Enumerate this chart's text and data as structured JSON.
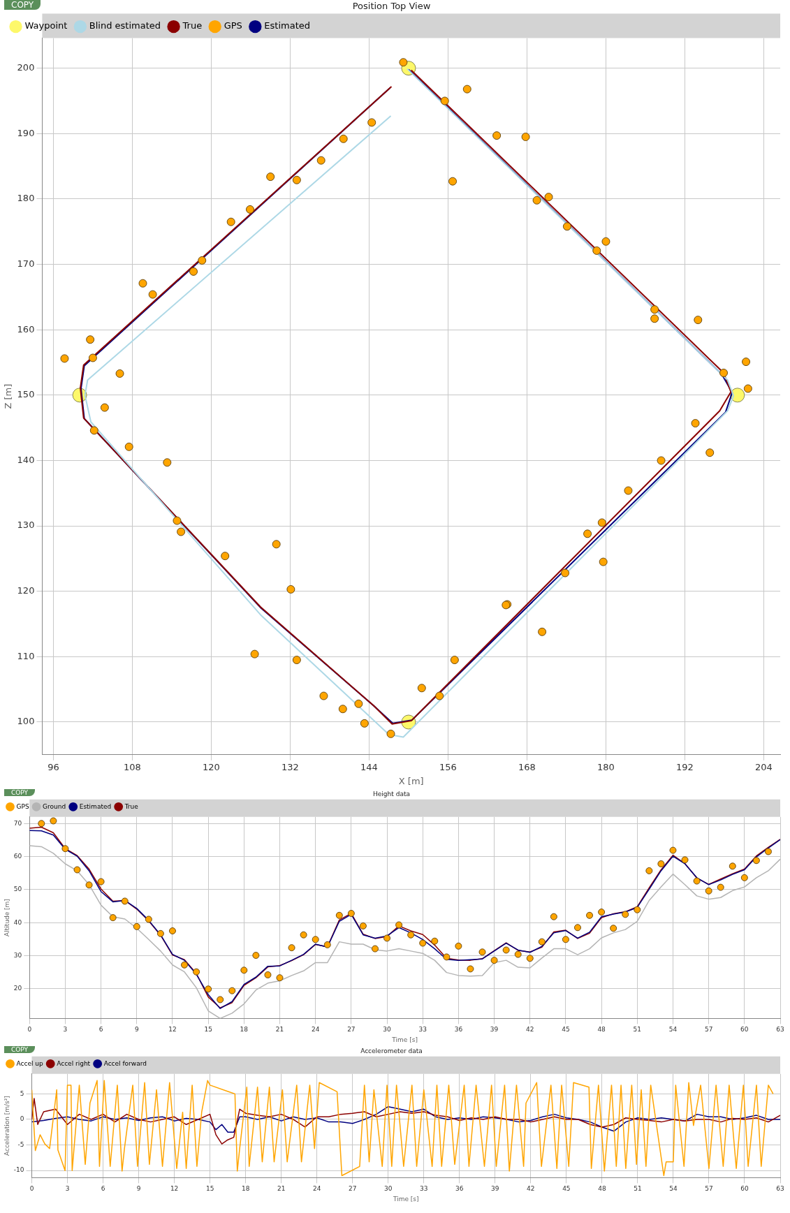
{
  "chart_data": [
    {
      "type": "line",
      "title": "Position Top View",
      "xlabel": "X [m]",
      "ylabel": "Z [m]",
      "annotations": [
        "COPY"
      ],
      "grid": true,
      "legend": "top left",
      "xlim": [
        94.3,
        206.5
      ],
      "ylim": [
        95,
        204.6
      ],
      "xticks": [
        96,
        108,
        120,
        132,
        144,
        156,
        168,
        180,
        192,
        204
      ],
      "yticks": [
        100,
        110,
        120,
        130,
        140,
        150,
        160,
        170,
        180,
        190,
        200
      ],
      "series": [
        {
          "name": "Waypoint",
          "type": "scatter",
          "marker": "circle",
          "color": "#fdf86a",
          "x": [
            150,
            100,
            150,
            200
          ],
          "values": [
            200,
            150,
            100,
            150
          ]
        },
        {
          "name": "Blind estimated",
          "type": "line",
          "marker": "none",
          "color": "#add8e6",
          "x": [
            147.3,
            101.2,
            100.8,
            101.7,
            127.5,
            147,
            149.2,
            198.5,
            199.4,
            198.5,
            149.8
          ],
          "values": [
            192.7,
            152.3,
            150,
            145.9,
            116.4,
            98.1,
            97.7,
            147.6,
            149.9,
            152.3,
            199.9
          ]
        },
        {
          "name": "True",
          "type": "line",
          "marker": "none",
          "color": "#8b0000",
          "x": [
            147.4,
            100.6,
            100.1,
            100.6,
            127.5,
            144.7,
            147.5,
            150.4,
            197.3,
            199,
            197.9,
            150.4
          ],
          "values": [
            197.2,
            154.6,
            151.1,
            146.5,
            117.6,
            102.5,
            99.7,
            100.2,
            147.6,
            150.5,
            153.4,
            199.7
          ]
        },
        {
          "name": "GPS",
          "type": "scatter",
          "marker": "circle",
          "color": "#ffa500",
          "x": [
            149.2,
            155.5,
            158.9,
            156.7,
            163.4,
            167.8,
            169.5,
            171.3,
            174.1,
            178.6,
            180,
            187.4,
            187.4,
            194,
            197.9,
            201.3,
            201.6,
            193.6,
            195.8,
            188.4,
            183.4,
            179.4,
            177.2,
            179.6,
            173.8,
            165,
            164.8,
            170.3,
            157,
            154.7,
            152,
            147.3,
            143.3,
            142.4,
            140,
            137.1,
            133,
            132.1,
            129.9,
            126.6,
            122.1,
            115.4,
            114.8,
            113.3,
            107.5,
            103.8,
            102.2,
            106.1,
            102,
            101.6,
            97.7,
            111.1,
            109.6,
            117.3,
            118.6,
            123,
            125.9,
            129,
            133,
            136.7,
            140.1,
            144.4
          ],
          "values": [
            200.9,
            195,
            196.8,
            182.7,
            189.7,
            189.5,
            179.8,
            180.3,
            175.8,
            172.1,
            173.5,
            163.1,
            161.7,
            161.5,
            153.4,
            155.1,
            151,
            145.7,
            141.2,
            140,
            135.4,
            130.5,
            128.8,
            124.5,
            122.8,
            118,
            117.9,
            113.8,
            109.5,
            104,
            105.2,
            98.2,
            99.8,
            102.8,
            102,
            104,
            109.5,
            120.3,
            127.2,
            110.4,
            125.4,
            129.1,
            130.8,
            139.7,
            142.1,
            148.1,
            144.6,
            153.3,
            155.7,
            158.5,
            155.6,
            165.4,
            167.1,
            168.9,
            170.6,
            176.5,
            178.4,
            183.4,
            182.9,
            185.9,
            189.2,
            191.7
          ]
        },
        {
          "name": "Estimated",
          "type": "line",
          "marker": "none",
          "color": "#000080",
          "x": [
            150,
            197.6,
            199.2,
            198.2,
            150.5,
            147.6,
            144.8,
            127.6,
            100.7,
            100.2,
            100.7,
            147.2
          ],
          "values": [
            199.8,
            153.2,
            150.4,
            147.4,
            100.3,
            99.8,
            102.4,
            117.4,
            146.4,
            151,
            154.5,
            197
          ]
        }
      ]
    },
    {
      "type": "line",
      "title": "Height data",
      "xlabel": "Time [s]",
      "ylabel": "Altitude [m]",
      "annotations": [
        "COPY"
      ],
      "grid": true,
      "legend": "top left",
      "xlim": [
        0,
        63
      ],
      "ylim": [
        11,
        72
      ],
      "xticks": [
        0,
        3,
        6,
        9,
        12,
        15,
        18,
        21,
        24,
        27,
        30,
        33,
        36,
        39,
        42,
        45,
        48,
        51,
        54,
        57,
        60,
        63
      ],
      "yticks": [
        20,
        30,
        40,
        50,
        60,
        70
      ],
      "x": [
        0,
        1,
        2,
        3,
        4,
        5,
        6,
        7,
        8,
        9,
        10,
        11,
        12,
        13,
        14,
        15,
        16,
        17,
        18,
        19,
        20,
        21,
        22,
        23,
        24,
        25,
        26,
        27,
        28,
        29,
        30,
        31,
        32,
        33,
        34,
        35,
        36,
        37,
        38,
        39,
        40,
        41,
        42,
        43,
        44,
        45,
        46,
        47,
        48,
        49,
        50,
        51,
        52,
        53,
        54,
        55,
        56,
        57,
        58,
        59,
        60,
        61,
        62,
        63
      ],
      "series": [
        {
          "name": "GPS",
          "type": "scatter",
          "marker": "circle",
          "color": "#ffa500",
          "x": [
            1,
            2,
            3,
            4,
            5,
            6,
            7,
            8,
            9,
            10,
            11,
            12,
            13,
            14,
            15,
            16,
            17,
            18,
            19,
            20,
            21,
            22,
            23,
            24,
            25,
            26,
            27,
            28,
            29,
            30,
            31,
            32,
            33,
            34,
            35,
            36,
            37,
            38,
            39,
            40,
            41,
            42,
            43,
            44,
            45,
            46,
            47,
            48,
            49,
            50,
            51,
            52,
            53,
            54,
            55,
            56,
            57,
            58,
            59,
            60,
            61,
            62
          ],
          "values": [
            70,
            70.8,
            62.4,
            56,
            51.4,
            52.4,
            41.5,
            46.5,
            38.8,
            41,
            36.7,
            37.5,
            27.2,
            25.1,
            19.9,
            16.7,
            19.4,
            25.6,
            30.1,
            24.2,
            23.3,
            32.4,
            36.3,
            34.9,
            33.3,
            42.2,
            42.8,
            39,
            32.1,
            35.3,
            39.3,
            36.3,
            33.8,
            34.4,
            29.6,
            32.9,
            26,
            31.1,
            28.6,
            31.7,
            30.4,
            29.2,
            34.2,
            41.8,
            34.9,
            38.5,
            42.2,
            43.2,
            38.3,
            42.5,
            43.9,
            55.7,
            57.8,
            61.9,
            59,
            52.6,
            49.6,
            50.7,
            57.1,
            53.6,
            58.8,
            61.5
          ]
        },
        {
          "name": "Ground",
          "type": "line",
          "marker": "none",
          "color": "#b4b4b4",
          "values": [
            63.3,
            63,
            61,
            57.8,
            55.7,
            51.5,
            45.3,
            41.8,
            41.1,
            38.3,
            34.9,
            31.4,
            27.2,
            25.1,
            20.3,
            13.3,
            11,
            12.6,
            15.4,
            19.6,
            21.7,
            22.4,
            24,
            25.4,
            27.9,
            27.9,
            34.2,
            33.5,
            33.5,
            31.8,
            31.4,
            32.1,
            31.4,
            30.7,
            28.6,
            24.9,
            24,
            23.8,
            24,
            27.9,
            28.6,
            26.5,
            26.3,
            29.3,
            32.1,
            32.1,
            30.3,
            32.1,
            35.4,
            36.9,
            37.9,
            40.4,
            46.7,
            50.8,
            54.7,
            51.5,
            48.1,
            47.1,
            47.6,
            49.7,
            50.8,
            53.6,
            55.7,
            59.2
          ]
        },
        {
          "name": "Estimated",
          "type": "line",
          "marker": "none",
          "color": "#000080",
          "values": [
            67.9,
            67.8,
            66.5,
            62.2,
            60.1,
            55.7,
            49.4,
            46.3,
            46.7,
            44.3,
            40.7,
            36.3,
            30.4,
            28.6,
            24.4,
            18.2,
            14,
            16.1,
            21.3,
            23.5,
            26.8,
            26.9,
            28.6,
            30.4,
            33.5,
            32.6,
            40.4,
            42.5,
            36.3,
            35.3,
            36,
            38.5,
            36.9,
            34.9,
            32.1,
            28.9,
            28.6,
            28.8,
            29,
            31.4,
            33.8,
            31.7,
            31,
            32.8,
            36.9,
            37.6,
            35.3,
            37.1,
            41.8,
            42.6,
            43.2,
            44.6,
            50.1,
            55.7,
            60.1,
            57.8,
            53.6,
            51.5,
            52.9,
            54.6,
            56,
            59.9,
            62.6,
            65.1
          ]
        },
        {
          "name": "True",
          "type": "line",
          "marker": "none",
          "color": "#8b0000",
          "values": [
            68.6,
            68.9,
            67.2,
            62.4,
            60.3,
            56.2,
            50.2,
            46.5,
            46.7,
            44.1,
            40.5,
            36.2,
            30.2,
            28.8,
            24.6,
            17.5,
            14.2,
            15.8,
            21,
            23.3,
            26.6,
            27,
            28.5,
            30.3,
            33.4,
            32.7,
            40.8,
            42.8,
            36.5,
            35.2,
            35.8,
            39,
            37.5,
            36.4,
            33.2,
            29.2,
            28.7,
            28.6,
            29.1,
            31.5,
            33.9,
            31.6,
            31.1,
            32.6,
            37.2,
            37.7,
            35.2,
            36.8,
            41.5,
            42.7,
            43.3,
            44.8,
            50.5,
            56,
            60.4,
            57.9,
            53.5,
            51.6,
            53.2,
            54.8,
            56.2,
            60.2,
            62.8,
            65.2
          ]
        }
      ]
    },
    {
      "type": "line",
      "title": "Accelerometer data",
      "xlabel": "Time [s]",
      "ylabel": "Acceleration [m/s²]",
      "annotations": [
        "COPY"
      ],
      "grid": true,
      "legend": "top left",
      "xlim": [
        0,
        63
      ],
      "ylim": [
        -11.4,
        8.9
      ],
      "xticks": [
        0,
        3,
        6,
        9,
        12,
        15,
        18,
        21,
        24,
        27,
        30,
        33,
        36,
        39,
        42,
        45,
        48,
        51,
        54,
        57,
        60,
        63
      ],
      "yticks": [
        -10,
        -5,
        0,
        5
      ],
      "series": [
        {
          "name": "Accel up",
          "type": "line",
          "marker": "none",
          "color": "#ffa500",
          "x": [
            0,
            0.3,
            0.7,
            1.1,
            1.5,
            2.1,
            2.2,
            2.8,
            3,
            3.3,
            3.4,
            4,
            4.5,
            4.9,
            5.5,
            5.7,
            6.1,
            6.6,
            7.2,
            7.6,
            7.8,
            8.5,
            8.9,
            9.5,
            9.9,
            10.5,
            11,
            11.6,
            12.2,
            12.7,
            13,
            13.5,
            13.9,
            14.3,
            14.8,
            15,
            16.6,
            17.1,
            17.3,
            17.5,
            18.1,
            18.3,
            19,
            19.4,
            20,
            20.4,
            21.1,
            21.5,
            22.3,
            22.7,
            23.4,
            23.8,
            24.2,
            25.7,
            26.1,
            27.6,
            28,
            28.4,
            28.8,
            29.5,
            29.9,
            30.3,
            30.7,
            31.3,
            32,
            32.4,
            33,
            33.7,
            34.1,
            34.5,
            35.1,
            35.6,
            36.4,
            36.8,
            37.4,
            38.1,
            38.7,
            39.1,
            39.8,
            40.2,
            40.8,
            41.4,
            41.6,
            42.5,
            42.9,
            43.7,
            44.2,
            44.6,
            45.2,
            45.6,
            46.9,
            47.1,
            47.7,
            48.2,
            48.8,
            49.2,
            49.6,
            50,
            50.5,
            50.9,
            51.3,
            51.7,
            52.1,
            53.2,
            53.4,
            54,
            54.2,
            54.9,
            55.3,
            55.7,
            56.3,
            57,
            57.6,
            58.2,
            58.7,
            59.3,
            59.9,
            60.3,
            61,
            61.4,
            62,
            62.4
          ],
          "values": [
            5.8,
            -6.1,
            -3,
            -4.8,
            -5.7,
            5.8,
            -6,
            -10,
            6.7,
            6.7,
            -10,
            6.7,
            -8.8,
            3.2,
            7.6,
            -9.2,
            7.6,
            -9.2,
            6.7,
            -10.1,
            -5.7,
            6.7,
            -9.2,
            7.2,
            -8.8,
            5.8,
            -9.2,
            7.2,
            -9.6,
            1.4,
            -9.6,
            6.7,
            -9.2,
            1.4,
            7.6,
            6.7,
            5.4,
            5,
            -10.1,
            -5.7,
            6.3,
            -9.2,
            6.3,
            -8.3,
            6.3,
            -8.3,
            5.8,
            -8.3,
            6.7,
            -8.3,
            6.7,
            -5.7,
            7.2,
            5.4,
            -11,
            -9.2,
            6.7,
            -8.3,
            5.8,
            -9.2,
            6.7,
            -9.2,
            6.7,
            -9.2,
            6.7,
            -9.2,
            5.8,
            -9.2,
            6.7,
            -9.2,
            6.7,
            -8.8,
            6.7,
            -9.2,
            6.7,
            -9.2,
            6.7,
            -9.2,
            6.7,
            -10.1,
            6.7,
            -9.2,
            3.2,
            7.2,
            -9.2,
            6.7,
            -9.6,
            6.7,
            -9.2,
            7.2,
            6.3,
            -9.6,
            6.7,
            -10.1,
            6.7,
            -9.2,
            6.7,
            -9.6,
            6.7,
            -8.8,
            5.8,
            -9.2,
            6.7,
            -11,
            -8.3,
            -8.3,
            6.7,
            -9.2,
            7.2,
            -1.2,
            6.7,
            -9.6,
            6.7,
            -9.2,
            6.7,
            -9.6,
            6.7,
            -9.2,
            6.7,
            -9.2,
            6.7,
            5
          ]
        },
        {
          "name": "Accel right",
          "type": "line",
          "marker": "none",
          "color": "#8b0000",
          "x": [
            0,
            0.2,
            0.5,
            1,
            2,
            3,
            4,
            5,
            6,
            7,
            8,
            9,
            10,
            11,
            12,
            13,
            14,
            15,
            15.5,
            16,
            16.5,
            17,
            17.5,
            18,
            19,
            20,
            21,
            22,
            23,
            24,
            25,
            26,
            27,
            28,
            29,
            30,
            31,
            32,
            33,
            34,
            35,
            36,
            37,
            38,
            39,
            40,
            41,
            42,
            43,
            44,
            45,
            46,
            47,
            48,
            49,
            50,
            51,
            52,
            53,
            54,
            55,
            56,
            57,
            58,
            59,
            60,
            61,
            62,
            63
          ],
          "values": [
            0,
            4.1,
            -1,
            1.5,
            2,
            -1,
            1,
            0,
            1,
            -0.5,
            1,
            0,
            -0.5,
            0,
            0.5,
            -1,
            0,
            1,
            -3,
            -4.8,
            -4,
            -3.5,
            2,
            1.2,
            0.8,
            0.5,
            1,
            0,
            -1.5,
            0.5,
            0.5,
            1,
            1.2,
            1.5,
            0.5,
            1,
            1.5,
            1.2,
            1.5,
            0.8,
            0.5,
            -0.2,
            0.3,
            0,
            0.5,
            0,
            0,
            -0.5,
            0,
            0.5,
            0,
            0,
            -1,
            -1.5,
            -1,
            0.3,
            0,
            -0.2,
            -0.5,
            0,
            -0.3,
            0,
            0,
            -0.5,
            0.2,
            0,
            0.3,
            -0.5,
            0.8
          ]
        },
        {
          "name": "Accel forward",
          "type": "line",
          "marker": "none",
          "color": "#000080",
          "x": [
            0,
            1,
            2,
            3,
            4,
            5,
            6,
            7,
            8,
            9,
            10,
            11,
            12,
            13,
            14,
            15,
            15.5,
            16,
            16.5,
            17,
            17.5,
            18,
            19,
            20,
            21,
            22,
            23,
            24,
            25,
            26,
            27,
            28,
            29,
            30,
            31,
            32,
            33,
            34,
            35,
            36,
            37,
            38,
            39,
            40,
            41,
            42,
            43,
            44,
            45,
            46,
            47,
            48,
            49,
            50,
            51,
            52,
            53,
            54,
            55,
            56,
            57,
            58,
            59,
            60,
            61,
            62,
            63
          ],
          "values": [
            -0.5,
            -0.2,
            0.2,
            0.5,
            0,
            -0.3,
            0.5,
            0,
            0.3,
            -0.2,
            0.3,
            0.5,
            -0.3,
            0.2,
            0,
            -0.5,
            -2,
            -1,
            -2.5,
            -2.5,
            0.5,
            0.5,
            0,
            0.5,
            -0.3,
            0.5,
            0,
            0.3,
            -0.5,
            -0.5,
            -0.8,
            0,
            1,
            2.5,
            2,
            1.5,
            2,
            0.5,
            0,
            0.3,
            0,
            0.5,
            0.3,
            0,
            -0.5,
            -0.2,
            0.5,
            1,
            0.3,
            0,
            -0.5,
            -1.5,
            -2.3,
            -0.5,
            0.3,
            0,
            0.3,
            0,
            -0.3,
            1,
            0.5,
            0.5,
            0,
            0.3,
            0.8,
            0,
            0
          ]
        }
      ]
    }
  ]
}
